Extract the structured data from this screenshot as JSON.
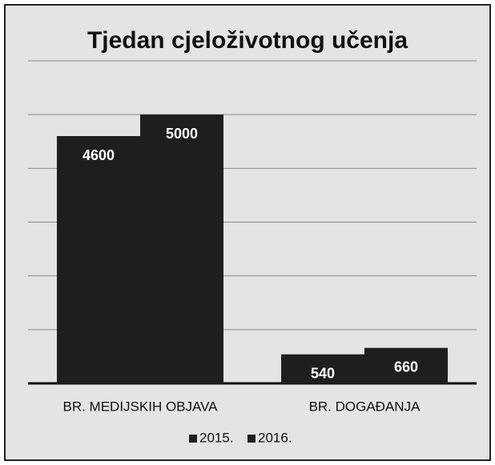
{
  "chart_data": {
    "type": "bar",
    "title": "Tjedan cjeloživotnog učenja",
    "categories": [
      "BR. MEDIJSKIH OBJAVA",
      "BR. DOGAĐANJA"
    ],
    "series": [
      {
        "name": "2015.",
        "color": "#1e1e1e",
        "values": [
          4600,
          540
        ]
      },
      {
        "name": "2016.",
        "color": "#1e1e1e",
        "values": [
          5000,
          660
        ]
      }
    ],
    "ylim": [
      0,
      6000
    ],
    "yticks": [
      0,
      1000,
      2000,
      3000,
      4000,
      5000,
      6000
    ],
    "grid": true,
    "legend": "bottom"
  }
}
